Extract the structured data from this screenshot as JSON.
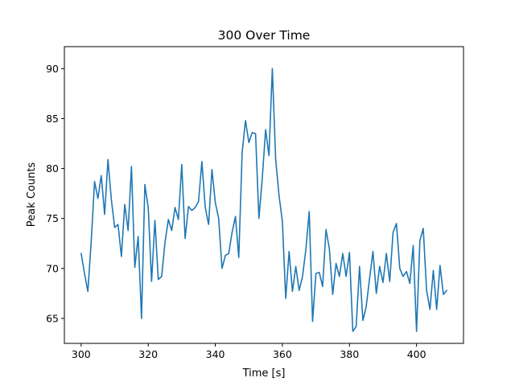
{
  "chart_data": {
    "type": "line",
    "title": "300 Over Time",
    "xlabel": "Time [s]",
    "ylabel": "Peak Counts",
    "xlim": [
      295,
      414
    ],
    "ylim": [
      62.5,
      92.2
    ],
    "xticks": [
      300,
      320,
      340,
      360,
      380,
      400
    ],
    "yticks": [
      65,
      70,
      75,
      80,
      85,
      90
    ],
    "grid": false,
    "legend": "none",
    "colors": {
      "line": "#1f77b4",
      "axes": "#000000",
      "background": "#ffffff"
    },
    "series": [
      {
        "x": [
          300,
          301,
          302,
          303,
          304,
          305,
          306,
          307,
          308,
          309,
          310,
          311,
          312,
          313,
          314,
          315,
          316,
          317,
          318,
          319,
          320,
          321,
          322,
          323,
          324,
          325,
          326,
          327,
          328,
          329,
          330,
          331,
          332,
          333,
          334,
          335,
          336,
          337,
          338,
          339,
          340,
          341,
          342,
          343,
          344,
          345,
          346,
          347,
          348,
          349,
          350,
          351,
          352,
          353,
          354,
          355,
          356,
          357,
          358,
          359,
          360,
          361,
          362,
          363,
          364,
          365,
          366,
          367,
          368,
          369,
          370,
          371,
          372,
          373,
          374,
          375,
          376,
          377,
          378,
          379,
          380,
          381,
          382,
          383,
          384,
          385,
          386,
          387,
          388,
          389,
          390,
          391,
          392,
          393,
          394,
          395,
          396,
          397,
          398,
          399,
          400,
          401,
          402,
          403,
          404,
          405,
          406,
          407,
          408,
          409
        ],
        "y": [
          71.5,
          69.5,
          67.7,
          72.7,
          78.7,
          77.0,
          79.3,
          75.4,
          80.9,
          76.9,
          74.1,
          74.4,
          71.2,
          76.4,
          73.8,
          80.2,
          70.1,
          73.2,
          65.0,
          78.4,
          76.1,
          68.7,
          74.8,
          68.9,
          69.2,
          72.6,
          74.9,
          73.8,
          76.1,
          74.9,
          80.4,
          73.0,
          76.2,
          75.8,
          76.1,
          76.7,
          80.7,
          76.1,
          74.4,
          79.9,
          76.6,
          75.0,
          70.0,
          71.3,
          71.5,
          73.6,
          75.2,
          71.1,
          81.6,
          84.8,
          82.6,
          83.6,
          83.5,
          75.0,
          79.0,
          83.9,
          81.3,
          90.0,
          80.9,
          77.3,
          74.7,
          67.0,
          71.7,
          67.7,
          70.2,
          67.8,
          69.2,
          71.9,
          75.7,
          64.7,
          69.5,
          69.6,
          68.2,
          73.9,
          72.0,
          67.4,
          70.5,
          69.2,
          71.5,
          69.2,
          71.6,
          63.7,
          64.2,
          70.2,
          64.8,
          66.2,
          69.0,
          71.7,
          67.5,
          70.2,
          68.6,
          71.5,
          68.7,
          73.6,
          74.5,
          70.0,
          69.2,
          69.7,
          68.5,
          72.3,
          63.7,
          72.8,
          74.0,
          67.8,
          65.9,
          69.8,
          65.9,
          70.3,
          67.4,
          67.8
        ]
      }
    ]
  }
}
